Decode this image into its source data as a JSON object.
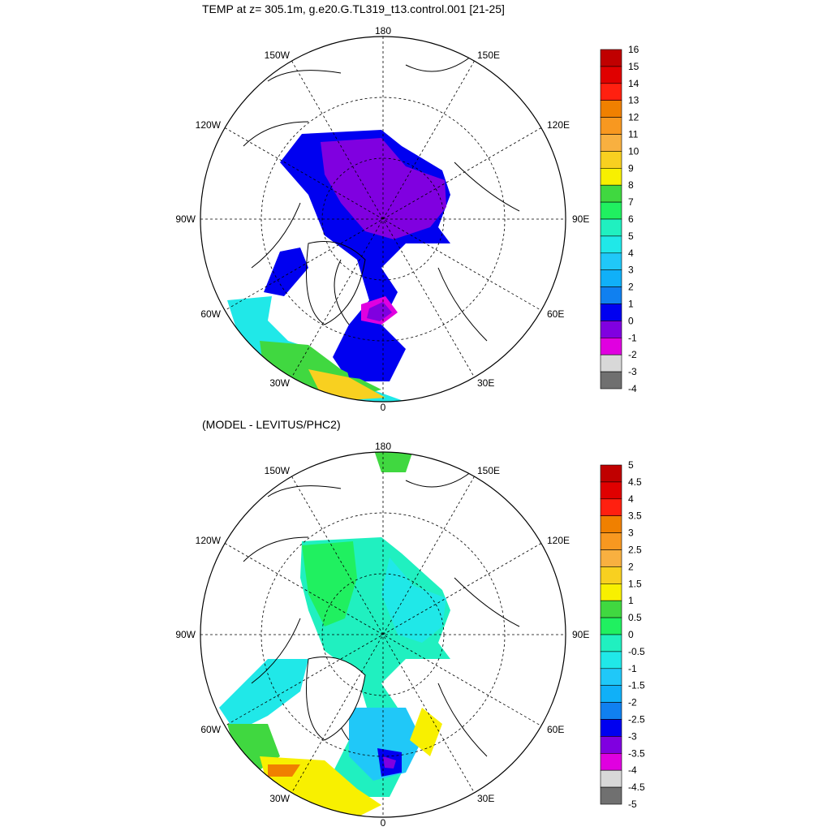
{
  "panels": [
    {
      "id": "top",
      "title": "TEMP at z= 305.1m, g.e20.G.TL319_t13.control.001 [21-25]",
      "colorbar": {
        "labels": [
          "16",
          "15",
          "14",
          "13",
          "12",
          "11",
          "10",
          "9",
          "8",
          "7",
          "6",
          "5",
          "4",
          "3",
          "2",
          "1",
          "0",
          "-1",
          "-2",
          "-3",
          "-4"
        ],
        "colors": [
          "#c00000",
          "#e00000",
          "#ff2010",
          "#f08000",
          "#f89820",
          "#f8b040",
          "#f8d020",
          "#f8f000",
          "#40d840",
          "#20f060",
          "#20f0c0",
          "#20e8e8",
          "#20c8f8",
          "#10b0f8",
          "#1080f0",
          "#0000f0",
          "#8000e0",
          "#e000e0",
          "#d8d8d8",
          "#707070"
        ]
      },
      "longitude_labels": [
        "180",
        "150W",
        "150E",
        "120W",
        "120E",
        "90W",
        "90E",
        "60W",
        "60E",
        "30W",
        "30E",
        "0"
      ]
    },
    {
      "id": "bottom",
      "title": "(MODEL - LEVITUS/PHC2)",
      "colorbar": {
        "labels": [
          "5",
          "4.5",
          "4",
          "3.5",
          "3",
          "2.5",
          "2",
          "1.5",
          "1",
          "0.5",
          "0",
          "-0.5",
          "-1",
          "-1.5",
          "-2",
          "-2.5",
          "-3",
          "-3.5",
          "-4",
          "-4.5",
          "-5"
        ],
        "colors": [
          "#c00000",
          "#e00000",
          "#ff2010",
          "#f08000",
          "#f89820",
          "#f8b040",
          "#f8d020",
          "#f8f000",
          "#40d840",
          "#20f060",
          "#20f0c0",
          "#20e8e8",
          "#20c8f8",
          "#10b0f8",
          "#1080f0",
          "#0000f0",
          "#8000e0",
          "#e000e0",
          "#d8d8d8",
          "#707070"
        ]
      },
      "longitude_labels": [
        "180",
        "150W",
        "150E",
        "120W",
        "120E",
        "90W",
        "90E",
        "60W",
        "60E",
        "30W",
        "30E",
        "0"
      ]
    }
  ]
}
